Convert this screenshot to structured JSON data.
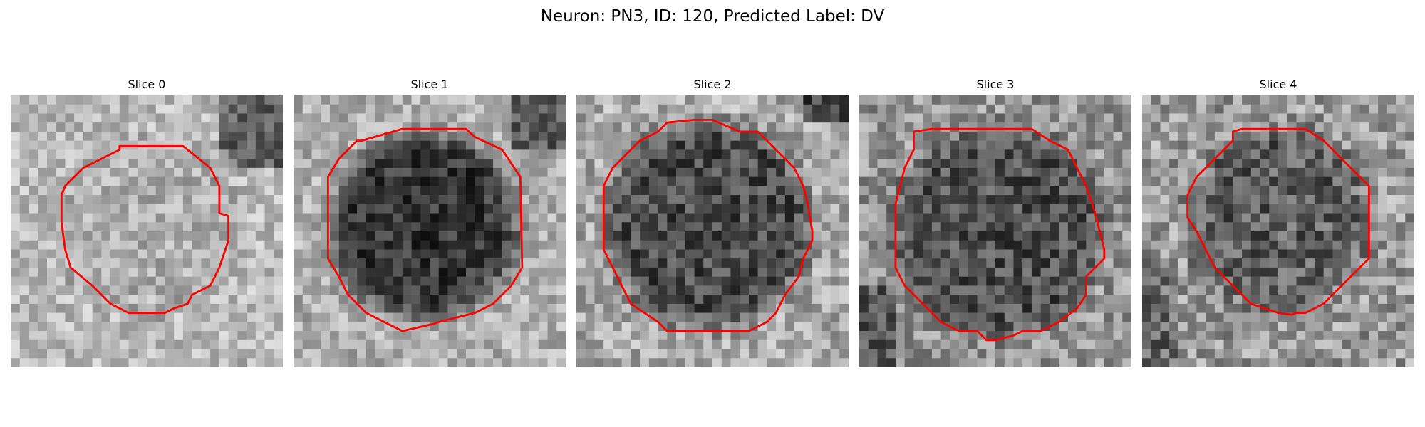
{
  "figure": {
    "title": "Neuron: PN3, ID: 120, Predicted Label: DV"
  },
  "panels": [
    {
      "title": "Slice 0"
    },
    {
      "title": "Slice 1"
    },
    {
      "title": "Slice 2"
    },
    {
      "title": "Slice 3"
    },
    {
      "title": "Slice 4"
    }
  ],
  "colors": {
    "contour": "#ff0000",
    "background": "#ffffff"
  }
}
